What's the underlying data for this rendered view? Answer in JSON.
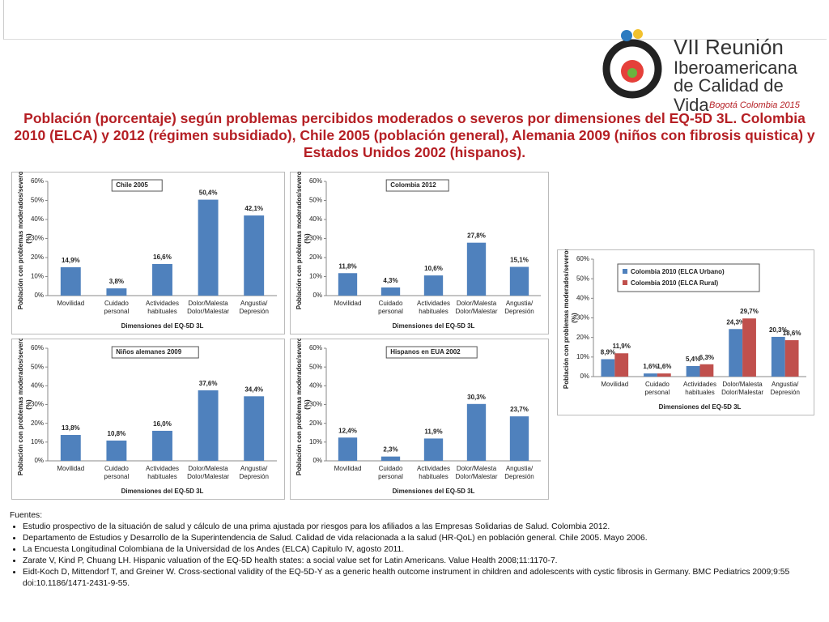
{
  "header": {
    "logo_line1": "VII Reunión",
    "logo_line2": "Iberoamericana",
    "logo_line3": "de Calidad de Vida",
    "logo_line4": "Bogotá Colombia 2015",
    "title": "Población (porcentaje) según problemas percibidos moderados o severos por dimensiones del EQ-5D 3L. Colombia 2010 (ELCA) y 2012 (régimen subsidiado), Chile 2005 (población general), Alemania 2009 (niños con fibrosis quistica) y Estados Unidos 2002 (hispanos)."
  },
  "chart_data": [
    {
      "type": "bar",
      "title": "Chile 2005",
      "categories": [
        "Movilidad",
        "Cuidado personal",
        "Actividades habituales",
        "Dolor/Malestar",
        "Angustia/ Depresión"
      ],
      "values": [
        14.9,
        3.8,
        16.6,
        50.4,
        42.1
      ],
      "value_labels": [
        "14,9%",
        "3,8%",
        "16,6%",
        "50,4%",
        "42,1%"
      ],
      "color": "#4f81bd",
      "y_label": "Población con problemas moderados/severos (%)",
      "x_label": "Dimensiones del EQ-5D 3L",
      "ylim": [
        0,
        60
      ],
      "yticks": [
        {
          "value": 0,
          "label": "0%"
        },
        {
          "value": 10,
          "label": "10%"
        },
        {
          "value": 20,
          "label": "20%"
        },
        {
          "value": 30,
          "label": "30%"
        },
        {
          "value": 40,
          "label": "40%"
        },
        {
          "value": 50,
          "label": "50%"
        },
        {
          "value": 60,
          "label": "60%"
        }
      ],
      "grid": false
    },
    {
      "type": "bar",
      "title": "Colombia 2012",
      "categories": [
        "Movilidad",
        "Cuidado personal",
        "Actividades habituales",
        "Dolor/Malestar",
        "Angustia/ Depresión"
      ],
      "values": [
        11.8,
        4.3,
        10.6,
        27.8,
        15.1
      ],
      "value_labels": [
        "11,8%",
        "4,3%",
        "10,6%",
        "27,8%",
        "15,1%"
      ],
      "color": "#4f81bd",
      "y_label": "Población con problemas moderados/severos (%)",
      "x_label": "Dimensiones del EQ-5D 3L",
      "ylim": [
        0,
        60
      ],
      "yticks": [
        {
          "value": 0,
          "label": "0%"
        },
        {
          "value": 10,
          "label": "10%"
        },
        {
          "value": 20,
          "label": "20%"
        },
        {
          "value": 30,
          "label": "30%"
        },
        {
          "value": 40,
          "label": "40%"
        },
        {
          "value": 50,
          "label": "50%"
        },
        {
          "value": 60,
          "label": "60%"
        }
      ],
      "grid": false
    },
    {
      "type": "bar",
      "title": "Niños alemanes 2009",
      "categories": [
        "Movilidad",
        "Cuidado personal",
        "Actividades habituales",
        "Dolor/Malestar",
        "Angustia/ Depresión"
      ],
      "values": [
        13.8,
        10.8,
        16.0,
        37.6,
        34.4
      ],
      "value_labels": [
        "13,8%",
        "10,8%",
        "16,0%",
        "37,6%",
        "34,4%"
      ],
      "color": "#4f81bd",
      "y_label": "Población con problemas moderados/severos (%)",
      "x_label": "Dimensiones del EQ-5D 3L",
      "ylim": [
        0,
        60
      ],
      "yticks": [
        {
          "value": 0,
          "label": "0%"
        },
        {
          "value": 10,
          "label": "10%"
        },
        {
          "value": 20,
          "label": "20%"
        },
        {
          "value": 30,
          "label": "30%"
        },
        {
          "value": 40,
          "label": "40%"
        },
        {
          "value": 50,
          "label": "50%"
        },
        {
          "value": 60,
          "label": "60%"
        }
      ],
      "grid": false
    },
    {
      "type": "bar",
      "title": "Hispanos en EUA 2002",
      "categories": [
        "Movilidad",
        "Cuidado personal",
        "Actividades habituales",
        "Dolor/Malestar",
        "Angustia/ Depresión"
      ],
      "values": [
        12.4,
        2.3,
        11.9,
        30.3,
        23.7
      ],
      "value_labels": [
        "12,4%",
        "2,3%",
        "11,9%",
        "30,3%",
        "23,7%"
      ],
      "color": "#4f81bd",
      "y_label": "Población con problemas moderados/severos (%)",
      "x_label": "Dimensiones del EQ-5D 3L",
      "ylim": [
        0,
        60
      ],
      "yticks": [
        {
          "value": 0,
          "label": "0%"
        },
        {
          "value": 10,
          "label": "10%"
        },
        {
          "value": 20,
          "label": "20%"
        },
        {
          "value": 30,
          "label": "30%"
        },
        {
          "value": 40,
          "label": "40%"
        },
        {
          "value": 50,
          "label": "50%"
        },
        {
          "value": 60,
          "label": "60%"
        }
      ],
      "grid": false
    },
    {
      "type": "grouped_bar",
      "categories": [
        "Movilidad",
        "Cuidado personal",
        "Actividades habituales",
        "Dolor/Malestar",
        "Angustia/ Depresión"
      ],
      "series": [
        {
          "name": "Colombia 2010 (ELCA Urbano)",
          "color": "#4f81bd",
          "values": [
            8.9,
            1.6,
            5.4,
            24.3,
            20.3
          ],
          "value_labels": [
            "8,9%",
            "1,6%",
            "5,4%",
            "24,3%",
            "20,3%"
          ]
        },
        {
          "name": "Colombia 2010 (ELCA Rural)",
          "color": "#c0504d",
          "values": [
            11.9,
            1.6,
            6.3,
            29.7,
            18.6
          ],
          "value_labels": [
            "11,9%",
            "1,6%",
            "6,3%",
            "29,7%",
            "18,6%"
          ]
        }
      ],
      "y_label": "Población con problemas moderados/severos (%)",
      "x_label": "Dimensiones del EQ-5D 3L",
      "ylim": [
        0,
        60
      ],
      "yticks": [
        {
          "value": 0,
          "label": "0%"
        },
        {
          "value": 10,
          "label": "10%"
        },
        {
          "value": 20,
          "label": "20%"
        },
        {
          "value": 30,
          "label": "30%"
        },
        {
          "value": 40,
          "label": "40%"
        },
        {
          "value": 50,
          "label": "50%"
        },
        {
          "value": 60,
          "label": "60%"
        }
      ],
      "grid": false,
      "legend": "top"
    }
  ],
  "footer": {
    "heading": "Fuentes:",
    "items": [
      "Estudio prospectivo de la situación de salud y cálculo de una prima ajustada por riesgos para los afiliados a las Empresas Solidarias de Salud. Colombia 2012.",
      "Departamento de Estudios y Desarrollo de la Superintendencia de Salud. Calidad de vida relacionada a la salud (HR-QoL) en población general. Chile 2005. Mayo 2006.",
      "La Encuesta Longitudinal Colombiana de la Universidad de los Andes (ELCA) Capitulo IV, agosto 2011.",
      "Zarate V, Kind P, Chuang LH. Hispanic valuation of the EQ-5D health states: a social value set for Latin Americans. Value Health 2008;11:1170-7.",
      "Eidt-Koch D, Mittendorf T, and Greiner W. Cross-sectional validity of the EQ-5D-Y as a generic health outcome instrument in children and adolescents with cystic fibrosis in Germany. BMC Pediatrics 2009;9:55 doi:10.1186/1471-2431-9-55."
    ]
  }
}
